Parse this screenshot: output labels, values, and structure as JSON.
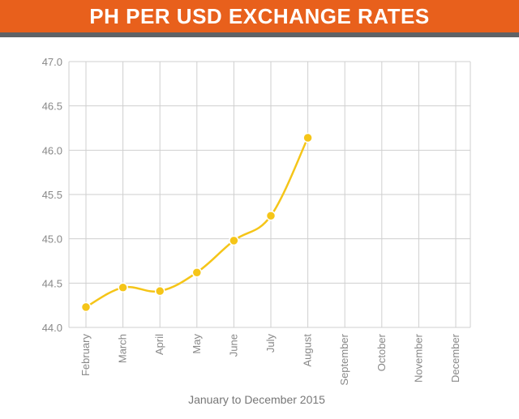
{
  "header": {
    "title": "PH PER USD EXCHANGE RATES"
  },
  "colors": {
    "banner": "#e8601c",
    "rule": "#5f6266",
    "line": "#f5c518",
    "grid": "#cfcfcf",
    "text": "#888888"
  },
  "chart_data": {
    "type": "line",
    "title": "PH PER USD EXCHANGE RATES",
    "xlabel": "January to December 2015",
    "ylabel": "",
    "categories": [
      "February",
      "March",
      "April",
      "May",
      "June",
      "July",
      "August",
      "September",
      "October",
      "November",
      "December"
    ],
    "series": [
      {
        "values": [
          44.23,
          44.45,
          44.41,
          44.62,
          44.98,
          45.26,
          46.14,
          null,
          null,
          null,
          null
        ]
      }
    ],
    "ylim": [
      44.0,
      47.0
    ],
    "yticks": [
      "47.0",
      "46.5",
      "46.0",
      "45.5",
      "45.0",
      "44.5",
      "44.0"
    ],
    "grid": true,
    "legend": "none"
  }
}
